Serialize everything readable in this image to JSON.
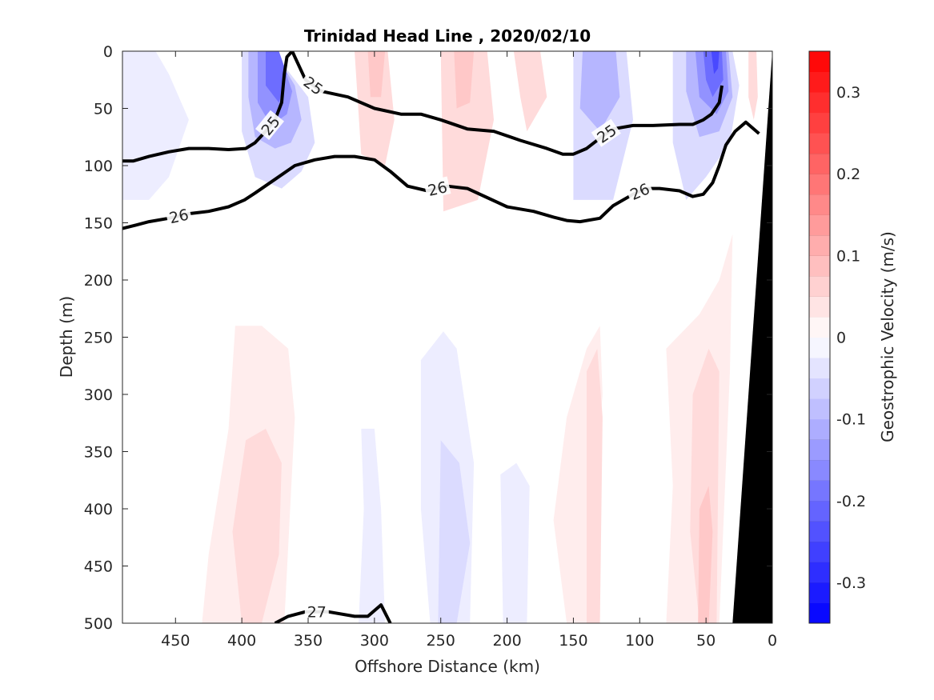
{
  "chart_data": {
    "type": "contour",
    "title": "Trinidad Head Line , 2020/02/10",
    "xlabel": "Offshore Distance (km)",
    "ylabel": "Depth (m)",
    "xlim": [
      490,
      0
    ],
    "ylim": [
      0,
      500
    ],
    "x_reversed": true,
    "y_reversed": true,
    "x_ticks": [
      450,
      400,
      350,
      300,
      250,
      200,
      150,
      100,
      50,
      0
    ],
    "y_ticks": [
      0,
      50,
      100,
      150,
      200,
      250,
      300,
      350,
      400,
      450,
      500
    ],
    "colorbar": {
      "label": "Geostrophic Velocity (m/s)",
      "range": [
        -0.35,
        0.35
      ],
      "step": 0.025,
      "ticks": [
        -0.3,
        -0.2,
        -0.1,
        0,
        0.1,
        0.2,
        0.3
      ],
      "tick_labels": [
        "-0.3",
        "-0.2",
        "-0.1",
        "0",
        "0.1",
        "0.2",
        "0.3"
      ],
      "negative_color": "#0000ff",
      "positive_color": "#ff0000",
      "zero_color": "#ffffff"
    },
    "velocity_regions": [
      {
        "x": [
          490,
          465,
          455,
          440,
          455,
          470,
          490
        ],
        "y": [
          0,
          0,
          20,
          60,
          110,
          130,
          130
        ],
        "v": -0.025
      },
      {
        "x": [
          400,
          385,
          370,
          350,
          345,
          355,
          370,
          390,
          400
        ],
        "y": [
          0,
          0,
          10,
          40,
          80,
          105,
          120,
          110,
          70
        ],
        "v": -0.05
      },
      {
        "x": [
          395,
          383,
          373,
          360,
          355,
          363,
          375,
          390,
          395
        ],
        "y": [
          0,
          0,
          5,
          30,
          60,
          80,
          85,
          75,
          40
        ],
        "v": -0.1
      },
      {
        "x": [
          388,
          378,
          368,
          362,
          366,
          378,
          388
        ],
        "y": [
          0,
          0,
          15,
          35,
          55,
          65,
          45
        ],
        "v": -0.15
      },
      {
        "x": [
          382,
          372,
          366,
          372,
          382
        ],
        "y": [
          0,
          0,
          20,
          45,
          30
        ],
        "v": -0.2
      },
      {
        "x": [
          315,
          290,
          285,
          292,
          310
        ],
        "y": [
          0,
          0,
          60,
          100,
          90
        ],
        "v": 0.05
      },
      {
        "x": [
          305,
          292,
          295,
          303
        ],
        "y": [
          0,
          0,
          40,
          40
        ],
        "v": 0.075
      },
      {
        "x": [
          250,
          215,
          210,
          222,
          248
        ],
        "y": [
          0,
          0,
          60,
          130,
          140
        ],
        "v": 0.05
      },
      {
        "x": [
          240,
          225,
          228,
          238
        ],
        "y": [
          0,
          0,
          45,
          50
        ],
        "v": 0.075
      },
      {
        "x": [
          195,
          175,
          170,
          185,
          190
        ],
        "y": [
          0,
          0,
          40,
          70,
          40
        ],
        "v": 0.05
      },
      {
        "x": [
          150,
          110,
          105,
          120,
          150
        ],
        "y": [
          0,
          0,
          60,
          130,
          130
        ],
        "v": -0.05
      },
      {
        "x": [
          143,
          118,
          115,
          130,
          145
        ],
        "y": [
          0,
          0,
          40,
          70,
          50
        ],
        "v": -0.1
      },
      {
        "x": [
          75,
          30,
          25,
          32,
          50,
          65,
          75
        ],
        "y": [
          0,
          0,
          30,
          80,
          110,
          130,
          80
        ],
        "v": -0.05
      },
      {
        "x": [
          65,
          33,
          30,
          40,
          55,
          65
        ],
        "y": [
          0,
          0,
          40,
          70,
          75,
          35
        ],
        "v": -0.1
      },
      {
        "x": [
          58,
          35,
          33,
          42,
          55
        ],
        "y": [
          0,
          0,
          35,
          55,
          40
        ],
        "v": -0.15
      },
      {
        "x": [
          52,
          38,
          37,
          45,
          50
        ],
        "y": [
          0,
          0,
          25,
          40,
          25
        ],
        "v": -0.2
      },
      {
        "x": [
          46,
          40,
          41,
          44
        ],
        "y": [
          0,
          0,
          15,
          20
        ],
        "v": -0.25
      },
      {
        "x": [
          18,
          12,
          11,
          14,
          18
        ],
        "y": [
          0,
          0,
          40,
          60,
          40
        ],
        "v": 0.05
      },
      {
        "x": [
          405,
          385,
          365,
          360,
          368,
          385,
          405,
          430,
          425,
          410
        ],
        "y": [
          240,
          240,
          260,
          320,
          500,
          500,
          500,
          500,
          440,
          330
        ],
        "v": 0.025
      },
      {
        "x": [
          397,
          382,
          370,
          372,
          385,
          400,
          407
        ],
        "y": [
          340,
          330,
          360,
          440,
          500,
          500,
          420
        ],
        "v": 0.05
      },
      {
        "x": [
          310,
          300,
          295,
          292,
          312,
          308
        ],
        "y": [
          330,
          330,
          400,
          500,
          500,
          400
        ],
        "v": -0.025
      },
      {
        "x": [
          265,
          248,
          238,
          225,
          228,
          258,
          265
        ],
        "y": [
          270,
          245,
          260,
          360,
          500,
          500,
          400
        ],
        "v": -0.025
      },
      {
        "x": [
          250,
          236,
          228,
          238,
          252
        ],
        "y": [
          340,
          360,
          430,
          500,
          500
        ],
        "v": -0.05
      },
      {
        "x": [
          205,
          193,
          183,
          185,
          203
        ],
        "y": [
          370,
          360,
          380,
          500,
          500
        ],
        "v": -0.025
      },
      {
        "x": [
          155,
          140,
          130,
          128,
          135,
          140,
          155,
          165
        ],
        "y": [
          320,
          260,
          240,
          300,
          400,
          500,
          500,
          410
        ],
        "v": 0.025
      },
      {
        "x": [
          140,
          132,
          128,
          130,
          140
        ],
        "y": [
          280,
          260,
          320,
          500,
          500
        ],
        "v": 0.05
      },
      {
        "x": [
          80,
          55,
          40,
          30,
          32,
          40,
          60,
          80,
          75
        ],
        "y": [
          260,
          230,
          200,
          160,
          280,
          500,
          500,
          500,
          380
        ],
        "v": 0.025
      },
      {
        "x": [
          60,
          48,
          40,
          42,
          55,
          62
        ],
        "y": [
          300,
          260,
          280,
          500,
          500,
          420
        ],
        "v": 0.05
      },
      {
        "x": [
          55,
          48,
          45,
          48,
          56
        ],
        "y": [
          400,
          380,
          420,
          500,
          500
        ],
        "v": 0.075
      }
    ],
    "density_contours": [
      {
        "level": 25,
        "x": [
          490,
          482,
          470,
          455,
          440,
          425,
          410,
          397,
          390,
          382,
          375,
          370,
          368,
          366,
          362,
          352,
          340,
          320,
          300,
          280,
          265,
          250,
          230,
          210,
          190,
          170,
          158,
          150,
          140,
          130,
          120,
          105,
          90,
          70,
          60,
          52,
          46,
          40,
          38
        ],
        "y": [
          96,
          96,
          92,
          88,
          85,
          85,
          86,
          85,
          80,
          70,
          60,
          45,
          20,
          5,
          0,
          25,
          35,
          40,
          50,
          55,
          55,
          60,
          68,
          70,
          78,
          85,
          90,
          90,
          85,
          76,
          68,
          65,
          65,
          64,
          64,
          60,
          55,
          45,
          30
        ]
      },
      {
        "level": 26,
        "x": [
          490,
          480,
          470,
          455,
          440,
          425,
          410,
          398,
          390,
          375,
          360,
          345,
          330,
          315,
          300,
          288,
          275,
          260,
          245,
          230,
          215,
          200,
          180,
          165,
          155,
          145,
          130,
          120,
          105,
          95,
          85,
          70,
          60,
          52,
          45,
          40,
          35,
          28,
          20,
          10
        ],
        "y": [
          155,
          152,
          149,
          146,
          142,
          140,
          136,
          130,
          124,
          112,
          100,
          95,
          92,
          92,
          95,
          105,
          118,
          122,
          118,
          120,
          128,
          136,
          140,
          145,
          148,
          149,
          146,
          135,
          125,
          120,
          120,
          122,
          127,
          125,
          115,
          100,
          82,
          70,
          62,
          72
        ]
      },
      {
        "level": 27,
        "x": [
          375,
          365,
          352,
          335,
          315,
          305,
          295,
          288
        ],
        "y": [
          500,
          494,
          490,
          490,
          494,
          494,
          484,
          500
        ]
      }
    ],
    "density_label_text": [
      "25",
      "25",
      "25",
      "26",
      "26",
      "26",
      "27"
    ],
    "bathymetry": {
      "x": [
        0,
        0,
        30,
        0
      ],
      "y": [
        0,
        500,
        500,
        0
      ],
      "color": "#000000"
    }
  }
}
